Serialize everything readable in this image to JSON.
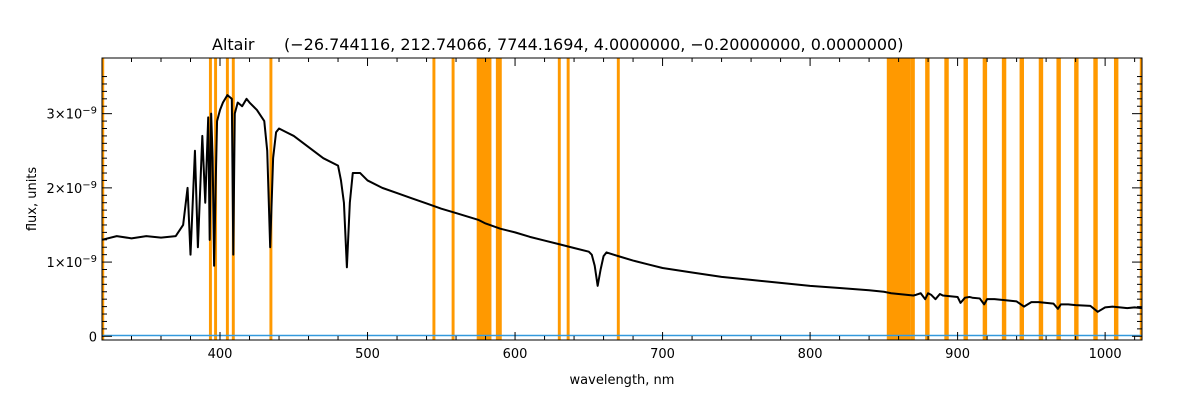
{
  "chart_data": {
    "type": "line",
    "title": "Altair",
    "subtitle": "(−26.744116, 212.74066, 7744.1694, 4.0000000, −0.20000000, 0.0000000)",
    "xlabel": "wavelength, nm",
    "ylabel": "flux, units",
    "xlim": [
      320,
      1025
    ],
    "ylim": [
      -5e-11,
      3.75e-09
    ],
    "x_ticks": [
      400,
      500,
      600,
      700,
      800,
      900,
      1000
    ],
    "y_ticks": [
      {
        "value": 0,
        "mantissa": "0",
        "exponent": ""
      },
      {
        "value": 1e-09,
        "mantissa": "1×10",
        "exponent": "−9"
      },
      {
        "value": 2e-09,
        "mantissa": "2×10",
        "exponent": "−9"
      },
      {
        "value": 3e-09,
        "mantissa": "3×10",
        "exponent": "−9"
      }
    ],
    "grid": false,
    "colors": {
      "spectrum": "#000000",
      "mask": "#ff9900",
      "error": "#3399dd"
    },
    "series": [
      {
        "kind": "spectrum",
        "x": [
          320,
          330,
          340,
          350,
          360,
          370,
          375,
          378,
          380,
          383,
          385,
          388,
          390,
          392,
          393,
          394,
          395,
          396,
          397,
          398,
          400,
          402,
          405,
          408,
          409,
          410,
          412,
          415,
          418,
          420,
          425,
          430,
          432,
          434,
          436,
          438,
          440,
          445,
          450,
          460,
          470,
          480,
          482,
          484,
          486,
          488,
          490,
          495,
          500,
          510,
          520,
          530,
          540,
          550,
          560,
          570,
          575,
          580,
          590,
          600,
          610,
          620,
          630,
          640,
          650,
          652,
          654,
          656,
          658,
          660,
          662,
          670,
          680,
          690,
          700,
          720,
          740,
          760,
          780,
          800,
          820,
          840,
          850,
          855,
          860,
          865,
          870,
          872,
          875,
          878,
          880,
          882,
          885,
          888,
          890,
          895,
          900,
          902,
          905,
          908,
          910,
          915,
          918,
          920,
          925,
          930,
          935,
          940,
          945,
          950,
          955,
          960,
          965,
          968,
          970,
          975,
          980,
          990,
          995,
          1000,
          1005,
          1010,
          1015,
          1020,
          1025
        ],
        "y": [
          1.3e-09,
          1.35e-09,
          1.32e-09,
          1.35e-09,
          1.33e-09,
          1.35e-09,
          1.5e-09,
          2e-09,
          1.1e-09,
          2.5e-09,
          1.2e-09,
          2.7e-09,
          1.8e-09,
          2.95e-09,
          1.3e-09,
          3e-09,
          2.4e-09,
          9.5e-10,
          2e-09,
          2.9e-09,
          3.05e-09,
          3.15e-09,
          3.25e-09,
          3.2e-09,
          1.1e-09,
          3e-09,
          3.15e-09,
          3.1e-09,
          3.2e-09,
          3.15e-09,
          3.05e-09,
          2.9e-09,
          2.5e-09,
          1.2e-09,
          2.4e-09,
          2.75e-09,
          2.8e-09,
          2.75e-09,
          2.7e-09,
          2.55e-09,
          2.4e-09,
          2.3e-09,
          2.1e-09,
          1.8e-09,
          9.3e-10,
          1.8e-09,
          2.2e-09,
          2.2e-09,
          2.1e-09,
          2e-09,
          1.93e-09,
          1.86e-09,
          1.79e-09,
          1.72e-09,
          1.66e-09,
          1.6e-09,
          1.57e-09,
          1.52e-09,
          1.45e-09,
          1.4e-09,
          1.34e-09,
          1.29e-09,
          1.24e-09,
          1.19e-09,
          1.14e-09,
          1.1e-09,
          9.5e-10,
          6.8e-10,
          9e-10,
          1.08e-09,
          1.13e-09,
          1.08e-09,
          1.02e-09,
          9.7e-10,
          9.2e-10,
          8.6e-10,
          8e-10,
          7.6e-10,
          7.2e-10,
          6.8e-10,
          6.5e-10,
          6.2e-10,
          6e-10,
          5.8e-10,
          5.7e-10,
          5.6e-10,
          5.5e-10,
          5.6e-10,
          5.8e-10,
          5e-10,
          5.8e-10,
          5.6e-10,
          5e-10,
          5.7e-10,
          5.5e-10,
          5.4e-10,
          5.3e-10,
          4.5e-10,
          5.2e-10,
          5.3e-10,
          5.2e-10,
          5.1e-10,
          4.3e-10,
          5e-10,
          5e-10,
          4.9e-10,
          4.8e-10,
          4.7e-10,
          4e-10,
          4.6e-10,
          4.6e-10,
          4.5e-10,
          4.4e-10,
          3.7e-10,
          4.3e-10,
          4.3e-10,
          4.2e-10,
          4.1e-10,
          3.3e-10,
          3.9e-10,
          4e-10,
          3.9e-10,
          3.8e-10,
          3.9e-10,
          3.8e-10
        ]
      },
      {
        "kind": "error",
        "x": [
          320,
          1025
        ],
        "y": [
          1e-11,
          1e-11
        ]
      }
    ],
    "mask_regions": [
      [
        320,
        321.5
      ],
      [
        392.5,
        394.5
      ],
      [
        396,
        398
      ],
      [
        404,
        406
      ],
      [
        408,
        410
      ],
      [
        433.5,
        435.5
      ],
      [
        544,
        546
      ],
      [
        557,
        559
      ],
      [
        574,
        584
      ],
      [
        587,
        591
      ],
      [
        629,
        631
      ],
      [
        635,
        637
      ],
      [
        669,
        671
      ],
      [
        852,
        868
      ],
      [
        868,
        871
      ],
      [
        878,
        881
      ],
      [
        891,
        894
      ],
      [
        904,
        907
      ],
      [
        917,
        920
      ],
      [
        930,
        933
      ],
      [
        942,
        945
      ],
      [
        955,
        958
      ],
      [
        967,
        970
      ],
      [
        979,
        982
      ],
      [
        992,
        995
      ],
      [
        1006,
        1009
      ],
      [
        1023.5,
        1025
      ]
    ]
  }
}
